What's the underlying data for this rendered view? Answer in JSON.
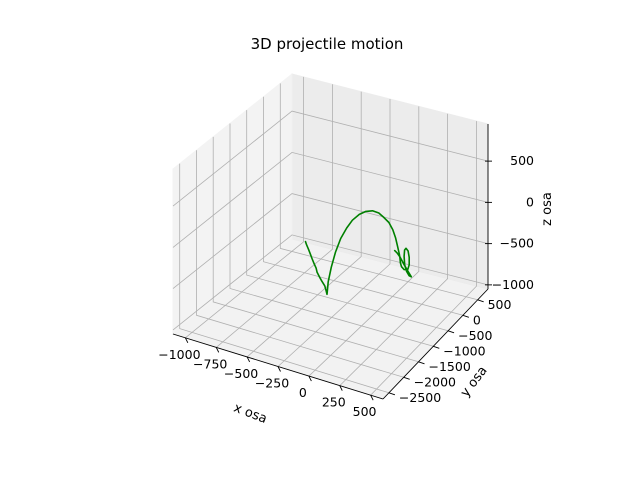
{
  "chart_data": {
    "type": "line3d",
    "title": "3D projectile motion",
    "xlabel": "x osa",
    "ylabel": "y osa",
    "zlabel": "z osa",
    "xticks": [
      -1000,
      -750,
      -500,
      -250,
      0,
      250,
      500
    ],
    "yticks": [
      -2500,
      -2000,
      -1500,
      -1000,
      -500,
      0,
      500
    ],
    "zticks": [
      -1000,
      -500,
      0,
      500
    ],
    "xlim": [
      -1100,
      600
    ],
    "ylim": [
      -2700,
      850
    ],
    "zlim": [
      -1050,
      950
    ],
    "grid": true,
    "series": [
      {
        "color": "#008000",
        "points": [
          [
            -920,
            630,
            -945
          ],
          [
            -880,
            520,
            -930
          ],
          [
            -820,
            370,
            -915
          ],
          [
            -760,
            210,
            -895
          ],
          [
            -700,
            50,
            -875
          ],
          [
            -640,
            -110,
            -855
          ],
          [
            -580,
            -260,
            -840
          ],
          [
            -530,
            -410,
            -820
          ],
          [
            -470,
            -560,
            -800
          ],
          [
            -410,
            -700,
            -785
          ],
          [
            -350,
            -840,
            -765
          ],
          [
            -300,
            -990,
            -745
          ],
          [
            -260,
            -1110,
            -735
          ],
          [
            -250,
            -1140,
            -700
          ],
          [
            -250,
            -1110,
            -580
          ],
          [
            -240,
            -1050,
            -420
          ],
          [
            -220,
            -990,
            -250
          ],
          [
            -190,
            -940,
            -90
          ],
          [
            -150,
            -900,
            40
          ],
          [
            -110,
            -870,
            140
          ],
          [
            -60,
            -840,
            220
          ],
          [
            -10,
            -820,
            270
          ],
          [
            40,
            -800,
            290
          ],
          [
            90,
            -790,
            280
          ],
          [
            130,
            -780,
            240
          ],
          [
            170,
            -770,
            190
          ],
          [
            200,
            -760,
            110
          ],
          [
            220,
            -750,
            20
          ],
          [
            235,
            -740,
            -80
          ],
          [
            245,
            -720,
            -180
          ],
          [
            245,
            -700,
            -230
          ],
          [
            245,
            -685,
            -300
          ],
          [
            250,
            -670,
            -350
          ],
          [
            270,
            -660,
            -380
          ],
          [
            300,
            -660,
            -370
          ],
          [
            315,
            -670,
            -300
          ],
          [
            320,
            -690,
            -200
          ],
          [
            315,
            -705,
            -120
          ],
          [
            300,
            -715,
            -90
          ],
          [
            285,
            -705,
            -120
          ],
          [
            275,
            -680,
            -210
          ],
          [
            270,
            -640,
            -330
          ],
          [
            275,
            -600,
            -420
          ],
          [
            290,
            -570,
            -480
          ],
          [
            305,
            -560,
            -490
          ],
          [
            300,
            -570,
            -470
          ],
          [
            280,
            -580,
            -420
          ],
          [
            250,
            -590,
            -350
          ],
          [
            220,
            -600,
            -270
          ],
          [
            195,
            -600,
            -230
          ],
          [
            175,
            -600,
            -210
          ]
        ]
      }
    ]
  }
}
